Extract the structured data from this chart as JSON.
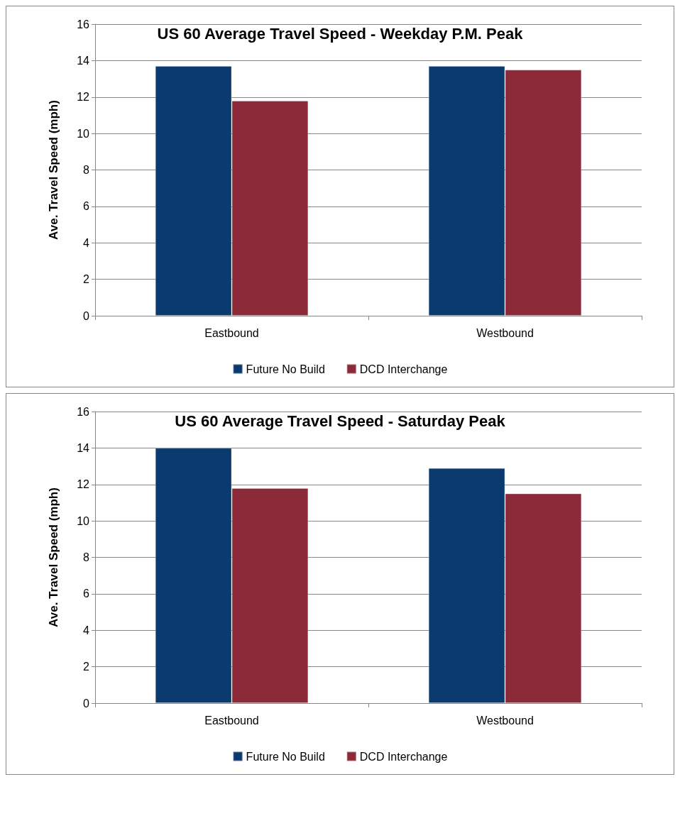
{
  "chart_data": [
    {
      "type": "bar",
      "title": "US 60 Average Travel Speed - Weekday P.M. Peak",
      "ylabel": "Ave. Travel Speed (mph)",
      "categories": [
        "Eastbound",
        "Westbound"
      ],
      "series": [
        {
          "name": "Future No Build",
          "color": "#0b3a6e",
          "values": [
            13.7,
            13.7
          ]
        },
        {
          "name": "DCD Interchange",
          "color": "#8c2a3a",
          "values": [
            11.8,
            13.5
          ]
        }
      ],
      "ylim": [
        0,
        16
      ],
      "yticks": [
        0,
        2,
        4,
        6,
        8,
        10,
        12,
        14,
        16
      ],
      "grid": "y",
      "legend": "bottom"
    },
    {
      "type": "bar",
      "title": "US 60 Average Travel Speed - Saturday Peak",
      "ylabel": "Ave. Travel Speed (mph)",
      "categories": [
        "Eastbound",
        "Westbound"
      ],
      "series": [
        {
          "name": "Future No Build",
          "color": "#0b3a6e",
          "values": [
            14.0,
            12.9
          ]
        },
        {
          "name": "DCD Interchange",
          "color": "#8c2a3a",
          "values": [
            11.8,
            11.5
          ]
        }
      ],
      "ylim": [
        0,
        16
      ],
      "yticks": [
        0,
        2,
        4,
        6,
        8,
        10,
        12,
        14,
        16
      ],
      "grid": "y",
      "legend": "bottom"
    }
  ]
}
